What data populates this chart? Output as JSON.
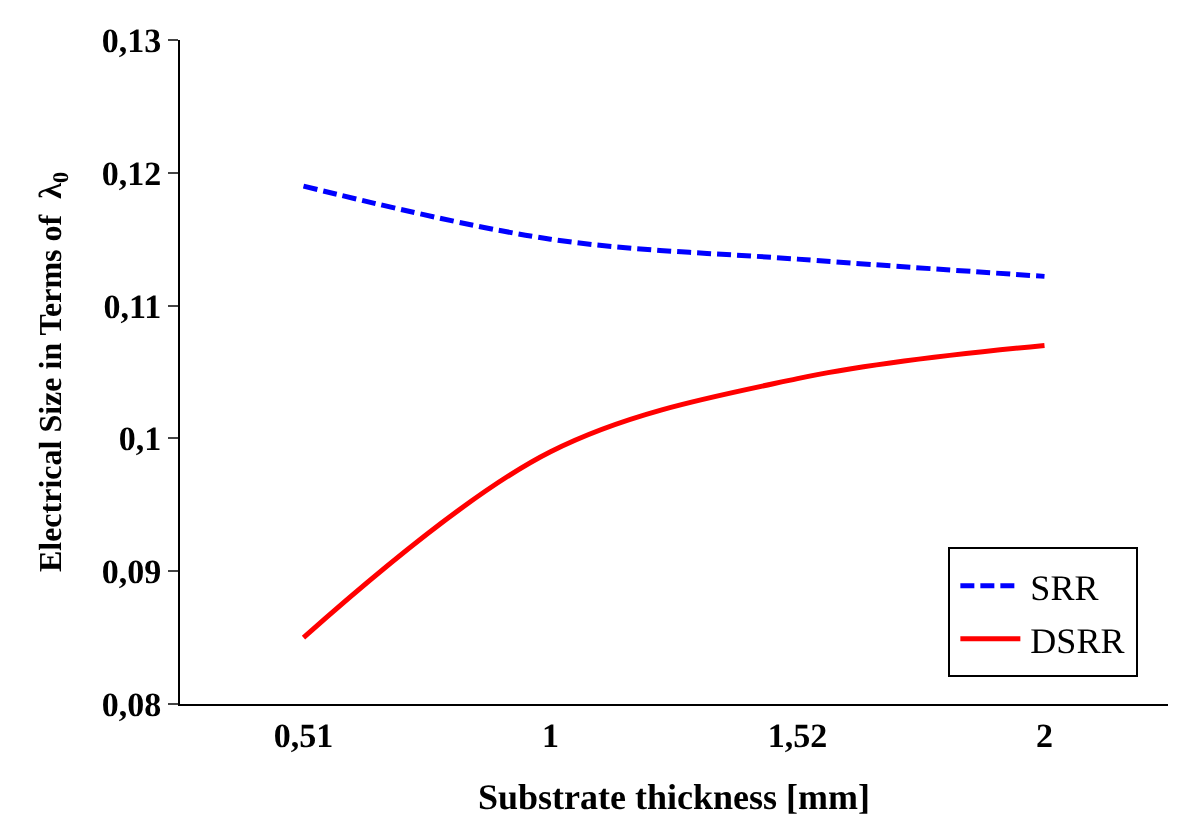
{
  "chart_data": {
    "type": "line",
    "xlabel": "Substrate thickness [mm]",
    "ylabel": "Electrical Size in Terms of  λ$_{0}$",
    "categories": [
      "0,51",
      "1",
      "1,52",
      "2"
    ],
    "series": [
      {
        "name": "SRR",
        "color": "#0000ff",
        "values": [
          0.119,
          0.115,
          0.1135,
          0.1122
        ],
        "line_style": "dashed"
      },
      {
        "name": "DSRR",
        "color": "#ff0000",
        "values": [
          0.085,
          0.099,
          0.1045,
          0.107
        ],
        "line_style": "solid"
      }
    ],
    "ylim": [
      0.08,
      0.13
    ],
    "yticks": [
      {
        "value": 0.08,
        "label": "0,08"
      },
      {
        "value": 0.09,
        "label": "0,09"
      },
      {
        "value": 0.1,
        "label": "0,1"
      },
      {
        "value": 0.11,
        "label": "0,11"
      },
      {
        "value": 0.12,
        "label": "0,12"
      },
      {
        "value": 0.13,
        "label": "0,13"
      }
    ],
    "legend": "bottom right",
    "marker": "none"
  }
}
